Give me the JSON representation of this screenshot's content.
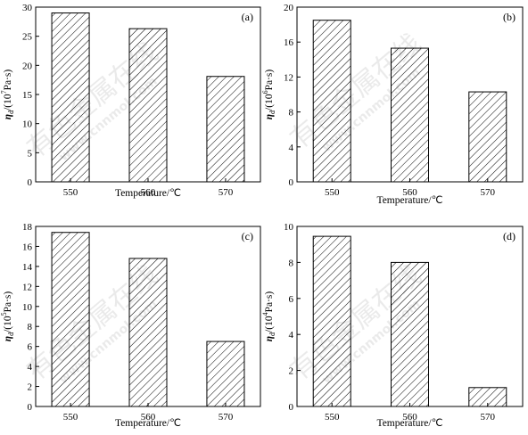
{
  "watermark": {
    "chinese": "有色金属在线",
    "url": "www.cnnmol.com"
  },
  "chart_data": [
    {
      "type": "bar",
      "panel_label": "(a)",
      "categories": [
        "550",
        "560",
        "570"
      ],
      "values": [
        29.0,
        26.3,
        18.1
      ],
      "xlabel": "Temperature/℃",
      "ylabel_parts": {
        "symbol": "η",
        "sub": "d",
        "pre": "/(10",
        "exp": "7",
        "post": "Pa·s)"
      },
      "ylim": [
        0,
        30
      ],
      "yticks": [
        0,
        5,
        10,
        15,
        20,
        25,
        30
      ],
      "fill": "diagonal-hatch",
      "grid": false
    },
    {
      "type": "bar",
      "panel_label": "(b)",
      "categories": [
        "550",
        "560",
        "570"
      ],
      "values": [
        18.5,
        15.3,
        10.3
      ],
      "xlabel": "Temperature/℃",
      "ylabel_parts": {
        "symbol": "η",
        "sub": "d",
        "pre": "/(10",
        "exp": "6",
        "post": "Pa·s)"
      },
      "ylim": [
        0,
        20
      ],
      "yticks": [
        0,
        4,
        8,
        12,
        16,
        20
      ],
      "fill": "diagonal-hatch",
      "grid": false
    },
    {
      "type": "bar",
      "panel_label": "(c)",
      "categories": [
        "550",
        "560",
        "570"
      ],
      "values": [
        17.4,
        14.8,
        6.5
      ],
      "xlabel": "Temperature/℃",
      "ylabel_parts": {
        "symbol": "η",
        "sub": "d",
        "pre": "/(10",
        "exp": "5",
        "post": "Pa·s)"
      },
      "ylim": [
        0,
        18
      ],
      "yticks": [
        0,
        2,
        4,
        6,
        8,
        10,
        12,
        14,
        16,
        18
      ],
      "fill": "diagonal-hatch",
      "grid": false
    },
    {
      "type": "bar",
      "panel_label": "(d)",
      "categories": [
        "550",
        "560",
        "570"
      ],
      "values": [
        9.45,
        8.0,
        1.05
      ],
      "xlabel": "Temperature/℃",
      "ylabel_parts": {
        "symbol": "η",
        "sub": "d",
        "pre": "/(10",
        "exp": "4",
        "post": "Pa·s)"
      },
      "ylim": [
        0,
        10
      ],
      "yticks": [
        0,
        2,
        4,
        6,
        8,
        10
      ],
      "fill": "diagonal-hatch",
      "grid": false
    }
  ]
}
